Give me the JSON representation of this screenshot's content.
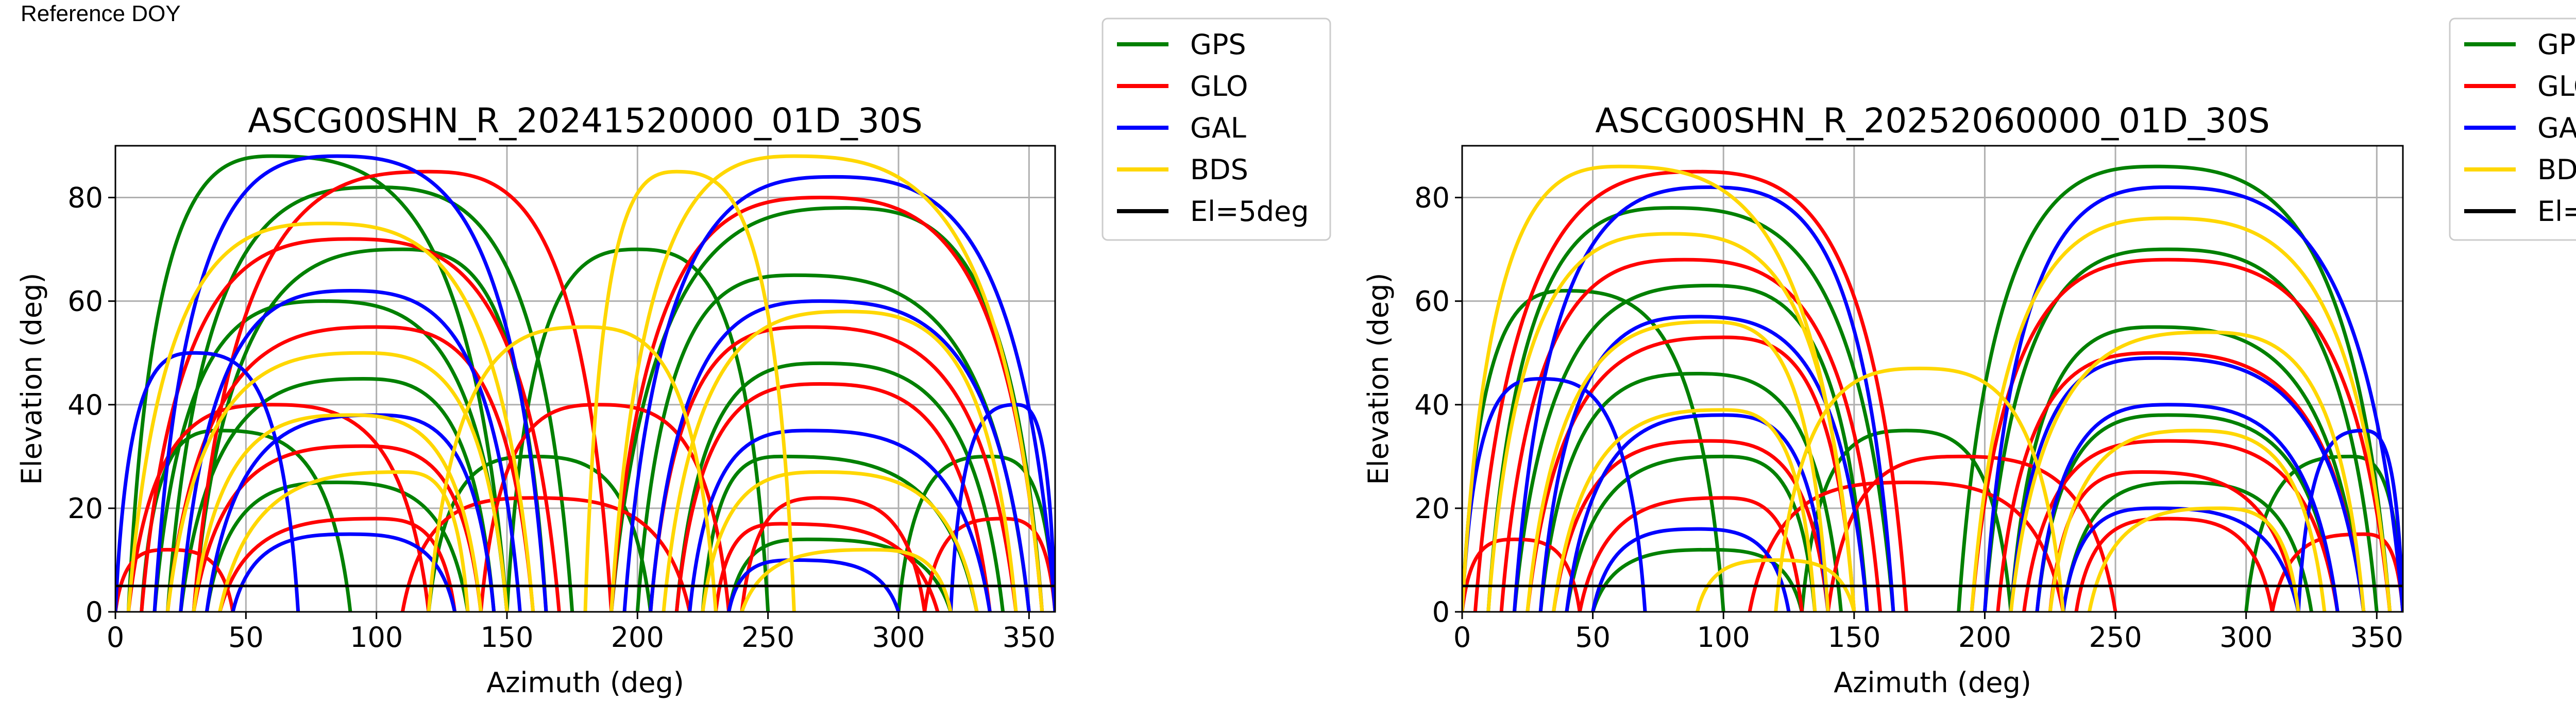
{
  "figure_heading": "Reference DOY",
  "legend_entries": [
    {
      "label": "GPS",
      "color": "#008000"
    },
    {
      "label": "GLO",
      "color": "#ff0000"
    },
    {
      "label": "GAL",
      "color": "#0000ff"
    },
    {
      "label": "BDS",
      "color": "#ffd700"
    },
    {
      "label": "El=5deg",
      "color": "#000000"
    }
  ],
  "chart_data": [
    {
      "type": "scatter",
      "title": "ASCG00SHN_R_20241520000_01D_30S",
      "xlabel": "Azimuth (deg)",
      "ylabel": "Elevation (deg)",
      "xlim": [
        0,
        360
      ],
      "ylim": [
        0,
        90
      ],
      "xticks": [
        0,
        50,
        100,
        150,
        200,
        250,
        300,
        350
      ],
      "yticks": [
        0,
        20,
        40,
        60,
        80
      ],
      "grid": true,
      "legend": "outside-right",
      "reference_line": {
        "name": "El=5deg",
        "y": 5,
        "color": "#000000"
      },
      "series": [
        {
          "name": "GPS",
          "color": "#008000",
          "arcs": [
            {
              "start": 20,
              "peak": [
                100,
                82
              ],
              "end": 175
            },
            {
              "start": 15,
              "peak": [
                80,
                60
              ],
              "end": 150
            },
            {
              "start": 25,
              "peak": [
                95,
                45
              ],
              "end": 145
            },
            {
              "start": 35,
              "peak": [
                85,
                25
              ],
              "end": 135
            },
            {
              "start": 30,
              "peak": [
                110,
                70
              ],
              "end": 165
            },
            {
              "start": 190,
              "peak": [
                280,
                78
              ],
              "end": 355
            },
            {
              "start": 200,
              "peak": [
                260,
                65
              ],
              "end": 350
            },
            {
              "start": 215,
              "peak": [
                270,
                48
              ],
              "end": 340
            },
            {
              "start": 225,
              "peak": [
                255,
                30
              ],
              "end": 330
            },
            {
              "start": 235,
              "peak": [
                265,
                14
              ],
              "end": 320
            },
            {
              "start": 5,
              "peak": [
                60,
                88
              ],
              "end": 150
            },
            {
              "start": 10,
              "peak": [
                40,
                35
              ],
              "end": 90
            },
            {
              "start": 300,
              "peak": [
                335,
                30
              ],
              "end": 360
            },
            {
              "start": 120,
              "peak": [
                160,
                30
              ],
              "end": 205
            },
            {
              "start": 150,
              "peak": [
                200,
                70
              ],
              "end": 250
            }
          ]
        },
        {
          "name": "GLO",
          "color": "#ff0000",
          "arcs": [
            {
              "start": 10,
              "peak": [
                90,
                72
              ],
              "end": 170
            },
            {
              "start": 20,
              "peak": [
                100,
                55
              ],
              "end": 160
            },
            {
              "start": 30,
              "peak": [
                95,
                32
              ],
              "end": 140
            },
            {
              "start": 40,
              "peak": [
                100,
                18
              ],
              "end": 130
            },
            {
              "start": 5,
              "peak": [
                60,
                40
              ],
              "end": 120
            },
            {
              "start": 190,
              "peak": [
                270,
                80
              ],
              "end": 355
            },
            {
              "start": 205,
              "peak": [
                265,
                55
              ],
              "end": 345
            },
            {
              "start": 215,
              "peak": [
                270,
                44
              ],
              "end": 335
            },
            {
              "start": 230,
              "peak": [
                255,
                17
              ],
              "end": 315
            },
            {
              "start": 240,
              "peak": [
                270,
                22
              ],
              "end": 310
            },
            {
              "start": 0,
              "peak": [
                20,
                12
              ],
              "end": 45
            },
            {
              "start": 310,
              "peak": [
                340,
                18
              ],
              "end": 360
            },
            {
              "start": 110,
              "peak": [
                160,
                22
              ],
              "end": 220
            },
            {
              "start": 140,
              "peak": [
                185,
                40
              ],
              "end": 235
            },
            {
              "start": 30,
              "peak": [
                120,
                85
              ],
              "end": 190
            }
          ]
        },
        {
          "name": "GAL",
          "color": "#0000ff",
          "arcs": [
            {
              "start": 15,
              "peak": [
                85,
                88
              ],
              "end": 165
            },
            {
              "start": 25,
              "peak": [
                90,
                62
              ],
              "end": 155
            },
            {
              "start": 35,
              "peak": [
                100,
                38
              ],
              "end": 145
            },
            {
              "start": 45,
              "peak": [
                90,
                15
              ],
              "end": 130
            },
            {
              "start": 195,
              "peak": [
                275,
                84
              ],
              "end": 360
            },
            {
              "start": 205,
              "peak": [
                270,
                60
              ],
              "end": 350
            },
            {
              "start": 220,
              "peak": [
                265,
                35
              ],
              "end": 335
            },
            {
              "start": 235,
              "peak": [
                260,
                10
              ],
              "end": 300
            },
            {
              "start": 320,
              "peak": [
                345,
                40
              ],
              "end": 360
            },
            {
              "start": 0,
              "peak": [
                30,
                50
              ],
              "end": 70
            }
          ]
        },
        {
          "name": "BDS",
          "color": "#ffd700",
          "arcs": [
            {
              "start": 5,
              "peak": [
                80,
                75
              ],
              "end": 160
            },
            {
              "start": 20,
              "peak": [
                95,
                50
              ],
              "end": 150
            },
            {
              "start": 30,
              "peak": [
                90,
                38
              ],
              "end": 140
            },
            {
              "start": 40,
              "peak": [
                110,
                27
              ],
              "end": 135
            },
            {
              "start": 190,
              "peak": [
                260,
                88
              ],
              "end": 355
            },
            {
              "start": 210,
              "peak": [
                280,
                58
              ],
              "end": 345
            },
            {
              "start": 225,
              "peak": [
                270,
                27
              ],
              "end": 330
            },
            {
              "start": 240,
              "peak": [
                290,
                12
              ],
              "end": 320
            },
            {
              "start": 180,
              "peak": [
                215,
                85
              ],
              "end": 260
            },
            {
              "start": 120,
              "peak": [
                180,
                55
              ],
              "end": 230
            }
          ]
        }
      ]
    },
    {
      "type": "scatter",
      "title": "ASCG00SHN_R_20252060000_01D_30S",
      "xlabel": "Azimuth (deg)",
      "ylabel": "Elevation (deg)",
      "xlim": [
        0,
        360
      ],
      "ylim": [
        0,
        90
      ],
      "xticks": [
        0,
        50,
        100,
        150,
        200,
        250,
        300,
        350
      ],
      "yticks": [
        0,
        20,
        40,
        60,
        80
      ],
      "grid": true,
      "legend": "outside-right",
      "reference_line": {
        "name": "El=5deg",
        "y": 5,
        "color": "#000000"
      },
      "series": [
        {
          "name": "GPS",
          "color": "#008000",
          "arcs": [
            {
              "start": 10,
              "peak": [
                80,
                78
              ],
              "end": 165
            },
            {
              "start": 20,
              "peak": [
                95,
                63
              ],
              "end": 155
            },
            {
              "start": 30,
              "peak": [
                90,
                46
              ],
              "end": 145
            },
            {
              "start": 40,
              "peak": [
                100,
                30
              ],
              "end": 135
            },
            {
              "start": 50,
              "peak": [
                95,
                12
              ],
              "end": 130
            },
            {
              "start": 190,
              "peak": [
                265,
                86
              ],
              "end": 355
            },
            {
              "start": 200,
              "peak": [
                270,
                70
              ],
              "end": 350
            },
            {
              "start": 210,
              "peak": [
                265,
                55
              ],
              "end": 345
            },
            {
              "start": 220,
              "peak": [
                270,
                38
              ],
              "end": 335
            },
            {
              "start": 230,
              "peak": [
                275,
                25
              ],
              "end": 325
            },
            {
              "start": 0,
              "peak": [
                40,
                62
              ],
              "end": 100
            },
            {
              "start": 300,
              "peak": [
                340,
                30
              ],
              "end": 360
            },
            {
              "start": 130,
              "peak": [
                170,
                35
              ],
              "end": 210
            }
          ]
        },
        {
          "name": "GLO",
          "color": "#ff0000",
          "arcs": [
            {
              "start": 5,
              "peak": [
                90,
                85
              ],
              "end": 170
            },
            {
              "start": 15,
              "peak": [
                85,
                68
              ],
              "end": 160
            },
            {
              "start": 25,
              "peak": [
                100,
                53
              ],
              "end": 150
            },
            {
              "start": 35,
              "peak": [
                95,
                33
              ],
              "end": 140
            },
            {
              "start": 45,
              "peak": [
                100,
                22
              ],
              "end": 130
            },
            {
              "start": 195,
              "peak": [
                270,
                68
              ],
              "end": 355
            },
            {
              "start": 205,
              "peak": [
                265,
                50
              ],
              "end": 345
            },
            {
              "start": 215,
              "peak": [
                270,
                33
              ],
              "end": 335
            },
            {
              "start": 225,
              "peak": [
                260,
                27
              ],
              "end": 320
            },
            {
              "start": 235,
              "peak": [
                270,
                18
              ],
              "end": 310
            },
            {
              "start": 0,
              "peak": [
                20,
                14
              ],
              "end": 45
            },
            {
              "start": 310,
              "peak": [
                345,
                15
              ],
              "end": 360
            },
            {
              "start": 110,
              "peak": [
                170,
                25
              ],
              "end": 230
            },
            {
              "start": 140,
              "peak": [
                190,
                30
              ],
              "end": 250
            }
          ]
        },
        {
          "name": "GAL",
          "color": "#0000ff",
          "arcs": [
            {
              "start": 20,
              "peak": [
                95,
                82
              ],
              "end": 165
            },
            {
              "start": 30,
              "peak": [
                90,
                57
              ],
              "end": 155
            },
            {
              "start": 40,
              "peak": [
                100,
                38
              ],
              "end": 140
            },
            {
              "start": 50,
              "peak": [
                90,
                16
              ],
              "end": 125
            },
            {
              "start": 200,
              "peak": [
                270,
                82
              ],
              "end": 360
            },
            {
              "start": 210,
              "peak": [
                265,
                49
              ],
              "end": 345
            },
            {
              "start": 220,
              "peak": [
                270,
                40
              ],
              "end": 335
            },
            {
              "start": 230,
              "peak": [
                265,
                20
              ],
              "end": 320
            },
            {
              "start": 320,
              "peak": [
                345,
                35
              ],
              "end": 360
            },
            {
              "start": 0,
              "peak": [
                30,
                45
              ],
              "end": 70
            }
          ]
        },
        {
          "name": "BDS",
          "color": "#ffd700",
          "arcs": [
            {
              "start": 0,
              "peak": [
                60,
                86
              ],
              "end": 150
            },
            {
              "start": 10,
              "peak": [
                80,
                73
              ],
              "end": 150
            },
            {
              "start": 25,
              "peak": [
                95,
                56
              ],
              "end": 140
            },
            {
              "start": 35,
              "peak": [
                100,
                39
              ],
              "end": 135
            },
            {
              "start": 195,
              "peak": [
                270,
                76
              ],
              "end": 355
            },
            {
              "start": 210,
              "peak": [
                285,
                54
              ],
              "end": 345
            },
            {
              "start": 225,
              "peak": [
                280,
                35
              ],
              "end": 330
            },
            {
              "start": 240,
              "peak": [
                290,
                20
              ],
              "end": 320
            },
            {
              "start": 90,
              "peak": [
                120,
                10
              ],
              "end": 150
            },
            {
              "start": 120,
              "peak": [
                175,
                47
              ],
              "end": 230
            }
          ]
        }
      ]
    }
  ]
}
